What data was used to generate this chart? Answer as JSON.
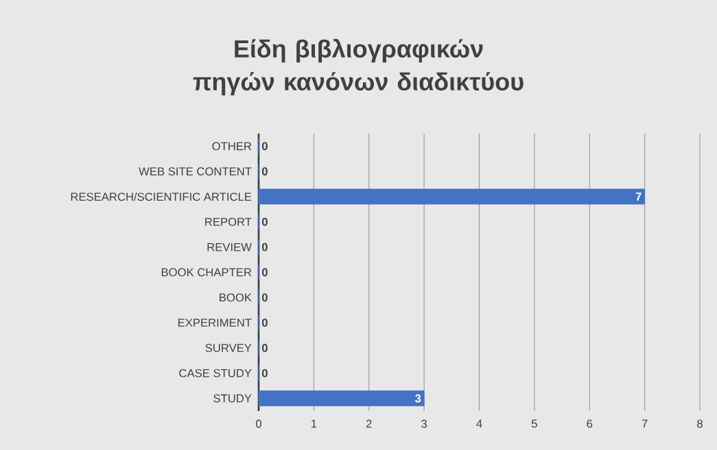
{
  "chart_data": {
    "type": "bar",
    "orientation": "horizontal",
    "title": "Είδη βιβλιογραφικών πηγών κανόνων διαδικτύου",
    "categories": [
      "OTHER",
      "WEB SITE CONTENT",
      "RESEARCH/SCIENTIFIC ARTICLE",
      "REPORT",
      "REVIEW",
      "BOOK CHAPTER",
      "BOOK",
      "EXPERIMENT",
      "SURVEY",
      "CASE STUDY",
      "STUDY"
    ],
    "values": [
      0,
      0,
      7,
      0,
      0,
      0,
      0,
      0,
      0,
      0,
      3
    ],
    "color": "#4472c4",
    "xlim": [
      0,
      8
    ],
    "xticks": [
      0,
      1,
      2,
      3,
      4,
      5,
      6,
      7,
      8
    ],
    "grid": "x",
    "data_labels": true
  }
}
